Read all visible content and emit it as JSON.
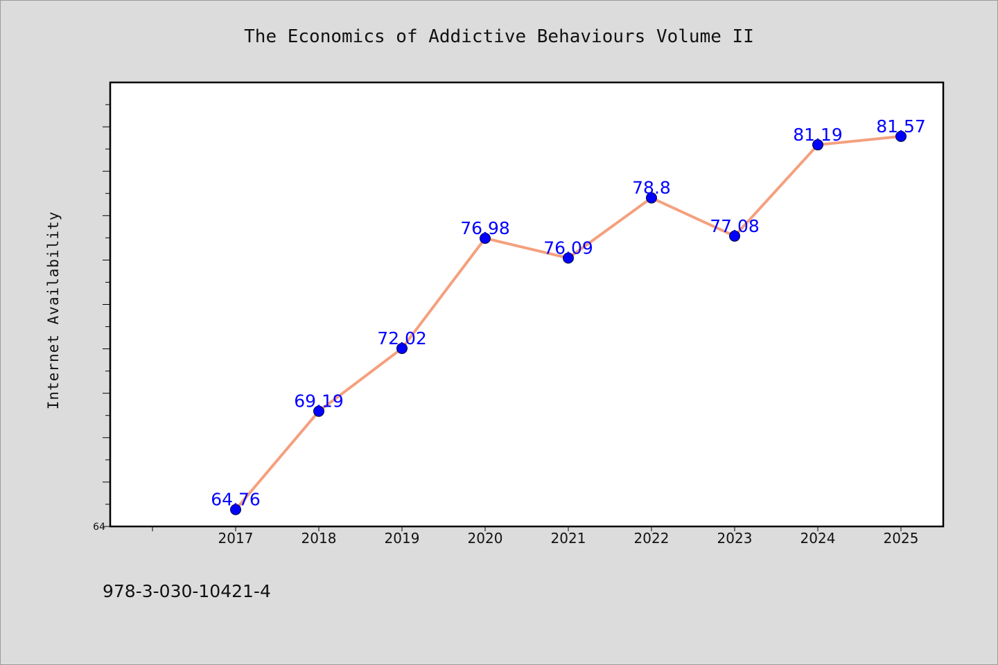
{
  "chart_data": {
    "type": "line",
    "title": "The Economics of Addictive Behaviours Volume II",
    "ylabel": "Internet Availability",
    "xlabel": "",
    "categories": [
      "2017",
      "2018",
      "2019",
      "2020",
      "2021",
      "2022",
      "2023",
      "2024",
      "2025"
    ],
    "series": [
      {
        "values": [
          64.76,
          69.19,
          72.02,
          76.98,
          76.09,
          78.8,
          77.08,
          81.19,
          81.57
        ],
        "value_labels": [
          "64.76",
          "69.19",
          "72.02",
          "76.98",
          "76.09",
          "78.8",
          "77.08",
          "81.19",
          "81.57"
        ]
      }
    ],
    "ylim": [
      64,
      84
    ],
    "y_tick_step_minor": 1,
    "y_tick_step_major": 2,
    "y_tick_labels": [
      "64"
    ],
    "grid": false,
    "legend": "none",
    "colors": {
      "line": "#f4a07e",
      "marker": "#0000ff",
      "data_label": "#0000ff",
      "background": "#dcdcdc",
      "plot_bg": "#ffffff"
    }
  },
  "footer": {
    "isbn": "978-3-030-10421-4"
  }
}
